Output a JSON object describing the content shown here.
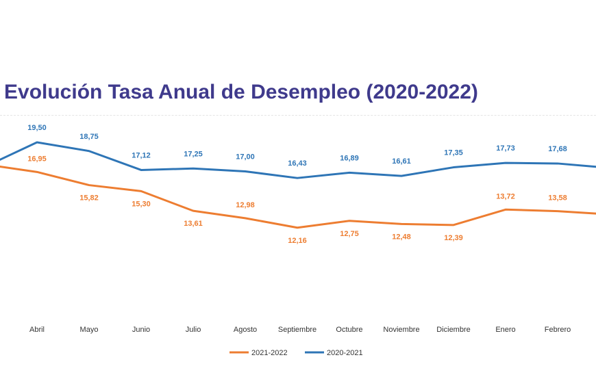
{
  "chart_data": {
    "type": "line",
    "title": "Evolución Tasa Anual de Desempleo (2020-2022)",
    "categories": [
      "",
      "Abril",
      "Mayo",
      "Junio",
      "Julio",
      "Agosto",
      "Septiembre",
      "Octubre",
      "Noviembre",
      "Diciembre",
      "Enero",
      "Febrero",
      ""
    ],
    "series": [
      {
        "name": "2021-2022",
        "color": "#ed7d31",
        "values": [
          17.6,
          16.95,
          15.82,
          15.3,
          13.61,
          12.98,
          12.16,
          12.75,
          12.48,
          12.39,
          13.72,
          13.58,
          13.3
        ],
        "labels": [
          "",
          "16,95",
          "15,82",
          "15,30",
          "13,61",
          "12,98",
          "12,16",
          "12,75",
          "12,48",
          "12,39",
          "13,72",
          "13,58",
          ""
        ]
      },
      {
        "name": "2020-2021",
        "color": "#2e75b6",
        "values": [
          17.4,
          19.5,
          18.75,
          17.12,
          17.25,
          17.0,
          16.43,
          16.89,
          16.61,
          17.35,
          17.73,
          17.68,
          17.3
        ],
        "labels": [
          "",
          "19,50",
          "18,75",
          "17,12",
          "17,25",
          "17,00",
          "16,43",
          "16,89",
          "16,61",
          "17,35",
          "17,73",
          "17,68",
          ""
        ]
      }
    ],
    "legend": "bottom",
    "grid": false
  }
}
